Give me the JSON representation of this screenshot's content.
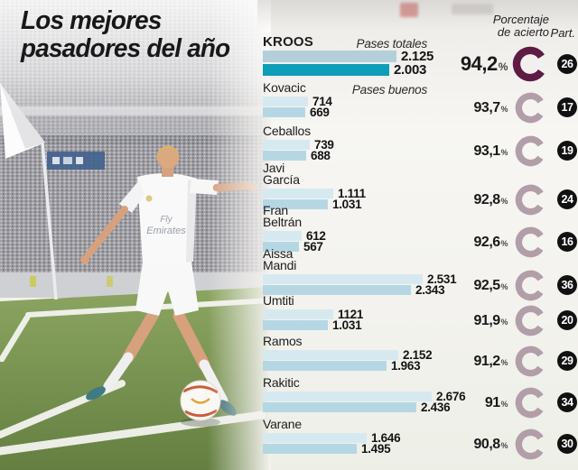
{
  "title_line1": "Los mejores",
  "title_line2": "pasadores del año",
  "columns": {
    "accuracy_header_line1": "Porcentaje",
    "accuracy_header_line2": "de acierto",
    "participation_header": "Part."
  },
  "legend": {
    "total_label": "Pases totales",
    "good_label": "Pases buenos"
  },
  "percent_sign": "%",
  "photo": {
    "jersey_line1": "Fly",
    "jersey_line2": "Emirates"
  },
  "colors": {
    "bar_total_highlight": "#b4cfda",
    "bar_good_highlight": "#0f9eb8",
    "bar_total": "#d7e9f0",
    "bar_good": "#b5d7e4",
    "donut_highlight": "#5e1b44",
    "donut": "#b29ea8",
    "badge_bg": "#111111",
    "badge_text": "#ffffff"
  },
  "chart_data": {
    "type": "bar",
    "title": "Los mejores pasadores del año",
    "series_labels": [
      "Pases totales",
      "Pases buenos"
    ],
    "max_value": 2676,
    "legend_position": "top",
    "players": [
      {
        "name": "Kroos",
        "name_lines": [
          "KROOS"
        ],
        "total": 2125,
        "good": 2003,
        "total_label": "2.125",
        "good_label": "2.003",
        "accuracy_pct": 94.2,
        "accuracy_label": "94,2",
        "participation": "26",
        "highlight": true
      },
      {
        "name": "Kovacic",
        "name_lines": [
          "Kovacic"
        ],
        "total": 714,
        "good": 669,
        "total_label": "714",
        "good_label": "669",
        "accuracy_pct": 93.7,
        "accuracy_label": "93,7",
        "participation": "17",
        "highlight": false
      },
      {
        "name": "Ceballos",
        "name_lines": [
          "Ceballos"
        ],
        "total": 739,
        "good": 688,
        "total_label": "739",
        "good_label": "688",
        "accuracy_pct": 93.1,
        "accuracy_label": "93,1",
        "participation": "19",
        "highlight": false
      },
      {
        "name": "Javi García",
        "name_lines": [
          "Javi",
          "García"
        ],
        "total": 1111,
        "good": 1031,
        "total_label": "1.111",
        "good_label": "1.031",
        "accuracy_pct": 92.8,
        "accuracy_label": "92,8",
        "participation": "24",
        "highlight": false
      },
      {
        "name": "Fran Beltrán",
        "name_lines": [
          "Fran",
          "Beltrán"
        ],
        "total": 612,
        "good": 567,
        "total_label": "612",
        "good_label": "567",
        "accuracy_pct": 92.6,
        "accuracy_label": "92,6",
        "participation": "16",
        "highlight": false
      },
      {
        "name": "Aissa Mandi",
        "name_lines": [
          "Aissa",
          "Mandi"
        ],
        "total": 2531,
        "good": 2343,
        "total_label": "2.531",
        "good_label": "2.343",
        "accuracy_pct": 92.5,
        "accuracy_label": "92,5",
        "participation": "36",
        "highlight": false
      },
      {
        "name": "Umtiti",
        "name_lines": [
          "Umtiti"
        ],
        "total": 1121,
        "good": 1031,
        "total_label": "1121",
        "good_label": "1.031",
        "accuracy_pct": 91.9,
        "accuracy_label": "91,9",
        "participation": "20",
        "highlight": false
      },
      {
        "name": "Ramos",
        "name_lines": [
          "Ramos"
        ],
        "total": 2152,
        "good": 1963,
        "total_label": "2.152",
        "good_label": "1.963",
        "accuracy_pct": 91.2,
        "accuracy_label": "91,2",
        "participation": "29",
        "highlight": false
      },
      {
        "name": "Rakitic",
        "name_lines": [
          "Rakitic"
        ],
        "total": 2676,
        "good": 2436,
        "total_label": "2.676",
        "good_label": "2.436",
        "accuracy_pct": 91.0,
        "accuracy_label": "91",
        "participation": "34",
        "highlight": false
      },
      {
        "name": "Varane",
        "name_lines": [
          "Varane"
        ],
        "total": 1646,
        "good": 1495,
        "total_label": "1.646",
        "good_label": "1.495",
        "accuracy_pct": 90.8,
        "accuracy_label": "90,8",
        "participation": "30",
        "highlight": false
      }
    ]
  }
}
